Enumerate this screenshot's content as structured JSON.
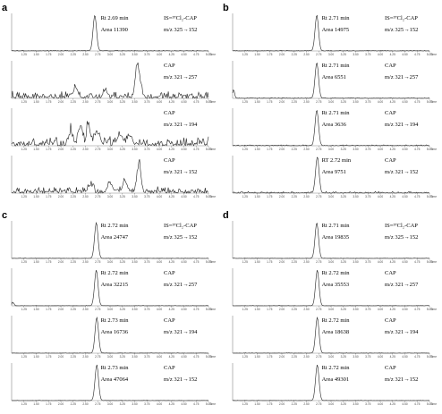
{
  "chart_data": [
    {
      "panel": "a",
      "type": "line",
      "x_unit": "Time",
      "xlim": [
        1.0,
        5.0
      ],
      "x_ticks": [
        "1.25",
        "1.50",
        "1.75",
        "2.00",
        "2.25",
        "2.50",
        "2.75",
        "3.00",
        "3.25",
        "3.50",
        "3.75",
        "4.00",
        "4.25",
        "4.50",
        "4.75",
        "5.00"
      ],
      "traces": [
        {
          "rt": "Rt 2.69 min",
          "area": "Area 11390",
          "compound": "IS=³⁷Cl₂-CAP",
          "mrm": "m/z 325→152",
          "peak_rt": 2.69,
          "noise": 0.02,
          "interferences": []
        },
        {
          "rt": "",
          "area": "",
          "compound": "CAP",
          "mrm": "m/z 321→257",
          "peak_rt": 3.55,
          "noise": 0.22,
          "interferences": [
            {
              "t": 3.55,
              "h": 0.75,
              "w": 0.04
            },
            {
              "t": 3.6,
              "h": 0.3,
              "w": 0.05
            },
            {
              "t": 2.9,
              "h": 0.25,
              "w": 0.04
            },
            {
              "t": 2.3,
              "h": 0.25,
              "w": 0.05
            }
          ]
        },
        {
          "rt": "",
          "area": "",
          "compound": "CAP",
          "mrm": "m/z 321→194",
          "peak_rt": 2.6,
          "noise": 0.3,
          "interferences": [
            {
              "t": 2.2,
              "h": 0.45,
              "w": 0.04
            },
            {
              "t": 2.4,
              "h": 0.55,
              "w": 0.04
            },
            {
              "t": 2.55,
              "h": 0.65,
              "w": 0.03
            },
            {
              "t": 2.75,
              "h": 0.4,
              "w": 0.05
            },
            {
              "t": 3.2,
              "h": 0.35,
              "w": 0.05
            },
            {
              "t": 3.4,
              "h": 0.3,
              "w": 0.05
            }
          ]
        },
        {
          "rt": "",
          "area": "",
          "compound": "CAP",
          "mrm": "m/z 321→152",
          "peak_rt": 3.6,
          "noise": 0.2,
          "interferences": [
            {
              "t": 3.58,
              "h": 0.75,
              "w": 0.04
            },
            {
              "t": 3.0,
              "h": 0.3,
              "w": 0.05
            },
            {
              "t": 3.3,
              "h": 0.35,
              "w": 0.05
            },
            {
              "t": 2.6,
              "h": 0.2,
              "w": 0.05
            }
          ]
        }
      ]
    },
    {
      "panel": "b",
      "type": "line",
      "x_unit": "Time",
      "xlim": [
        1.0,
        5.0
      ],
      "x_ticks": [
        "1.25",
        "1.50",
        "1.75",
        "2.00",
        "2.25",
        "2.50",
        "2.75",
        "3.00",
        "3.25",
        "3.50",
        "3.75",
        "4.00",
        "4.25",
        "4.50",
        "4.75",
        "5.00"
      ],
      "traces": [
        {
          "rt": "Rt 2.71 min",
          "area": "Area 14975",
          "compound": "IS=³⁷Cl₂-CAP",
          "mrm": "m/z 325→152",
          "peak_rt": 2.71,
          "noise": 0.02,
          "interferences": []
        },
        {
          "rt": "Rt 2.71 min",
          "area": "Area 6551",
          "compound": "CAP",
          "mrm": "m/z 321→257",
          "peak_rt": 2.71,
          "noise": 0.02,
          "interferences": [
            {
              "t": 1.02,
              "h": 0.3,
              "w": 0.02
            }
          ]
        },
        {
          "rt": "Rt 2.71 min",
          "area": "Area 3636",
          "compound": "CAP",
          "mrm": "m/z 321→194",
          "peak_rt": 2.71,
          "noise": 0.03,
          "interferences": []
        },
        {
          "rt": "RT 2.72 min",
          "area": "Area 9751",
          "compound": "CAP",
          "mrm": "m/z 321→152",
          "peak_rt": 2.72,
          "noise": 0.05,
          "interferences": []
        }
      ]
    },
    {
      "panel": "c",
      "type": "line",
      "x_unit": "Time",
      "xlim": [
        1.0,
        5.0
      ],
      "x_ticks": [
        "1.25",
        "1.50",
        "1.75",
        "2.00",
        "2.25",
        "2.50",
        "2.75",
        "3.00",
        "3.25",
        "3.50",
        "3.75",
        "4.00",
        "4.25",
        "4.50",
        "4.75",
        "5.00"
      ],
      "traces": [
        {
          "rt": "Rt 2.72 min",
          "area": "Area 24747",
          "compound": "IS=³⁷Cl₂-CAP",
          "mrm": "m/z 325→152",
          "peak_rt": 2.72,
          "noise": 0.01,
          "interferences": []
        },
        {
          "rt": "Rt 2.72 min",
          "area": "Area 32215",
          "compound": "CAP",
          "mrm": "m/z 321→257",
          "peak_rt": 2.72,
          "noise": 0.01,
          "interferences": [
            {
              "t": 1.03,
              "h": 0.12,
              "w": 0.02
            }
          ]
        },
        {
          "rt": "Rt 2.73 min",
          "area": "Area 16736",
          "compound": "CAP",
          "mrm": "m/z 321→194",
          "peak_rt": 2.73,
          "noise": 0.01,
          "interferences": []
        },
        {
          "rt": "Rt 2.73 min",
          "area": "Area 47064",
          "compound": "CAP",
          "mrm": "m/z 321→152",
          "peak_rt": 2.73,
          "noise": 0.01,
          "interferences": []
        }
      ]
    },
    {
      "panel": "d",
      "type": "line",
      "x_unit": "Time",
      "xlim": [
        1.0,
        5.0
      ],
      "x_ticks": [
        "1.25",
        "1.50",
        "1.75",
        "2.00",
        "2.25",
        "2.50",
        "2.75",
        "3.00",
        "3.25",
        "3.50",
        "3.75",
        "4.00",
        "4.25",
        "4.50",
        "4.75",
        "5.00"
      ],
      "traces": [
        {
          "rt": "Rt 2.71 min",
          "area": "Area 19835",
          "compound": "IS=³⁷Cl₂-CAP",
          "mrm": "m/z 325→152",
          "peak_rt": 2.71,
          "noise": 0.01,
          "interferences": []
        },
        {
          "rt": "Rt 2.72 min",
          "area": "Area 35553",
          "compound": "CAP",
          "mrm": "m/z 321→257",
          "peak_rt": 2.72,
          "noise": 0.01,
          "interferences": []
        },
        {
          "rt": "Rt 2.72 min",
          "area": "Area 18638",
          "compound": "CAP",
          "mrm": "m/z 321→194",
          "peak_rt": 2.72,
          "noise": 0.01,
          "interferences": []
        },
        {
          "rt": "Rt 2.72 min",
          "area": "Area 49301",
          "compound": "CAP",
          "mrm": "m/z 321→152",
          "peak_rt": 2.72,
          "noise": 0.01,
          "interferences": []
        }
      ]
    }
  ]
}
